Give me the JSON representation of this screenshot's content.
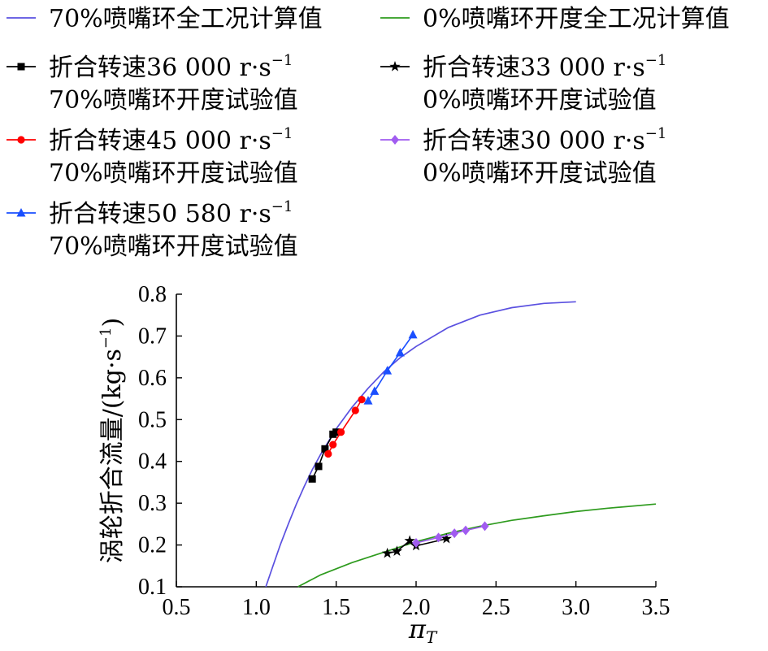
{
  "chart_data": {
    "type": "line",
    "xlabel": "π",
    "xlabel_sub": "T",
    "ylabel": "涡轮折合流量/(kg·s",
    "ylabel_sup": "−1",
    "ylabel_end": ")",
    "xlim": [
      0.5,
      3.5
    ],
    "ylim": [
      0.1,
      0.8
    ],
    "xticks": [
      0.5,
      1.0,
      1.5,
      2.0,
      2.5,
      3.0,
      3.5
    ],
    "xtick_labels": [
      "0.5",
      "1.0",
      "1.5",
      "2.0",
      "2.5",
      "3.0",
      "3.5"
    ],
    "yticks": [
      0.1,
      0.2,
      0.3,
      0.4,
      0.5,
      0.6,
      0.7,
      0.8
    ],
    "ytick_labels": [
      "0.1",
      "0.2",
      "0.3",
      "0.4",
      "0.5",
      "0.6",
      "0.7",
      "0.8"
    ],
    "grid": false,
    "legend_position": "top",
    "series": [
      {
        "name": "70%喷嘴环全工况计算值",
        "legend_lines": [
          "70%喷嘴环全工况计算值"
        ],
        "color": "#5a50e0",
        "marker": "none",
        "x": [
          1.06,
          1.1,
          1.15,
          1.2,
          1.25,
          1.3,
          1.35,
          1.4,
          1.5,
          1.6,
          1.7,
          1.8,
          1.9,
          2.0,
          2.2,
          2.4,
          2.6,
          2.8,
          3.0
        ],
        "y": [
          0.1,
          0.145,
          0.2,
          0.25,
          0.297,
          0.34,
          0.38,
          0.415,
          0.478,
          0.53,
          0.575,
          0.615,
          0.648,
          0.675,
          0.72,
          0.75,
          0.768,
          0.778,
          0.782
        ]
      },
      {
        "name": "0%喷嘴环开度全工况计算值",
        "legend_lines": [
          "0%喷嘴环开度全工况计算值"
        ],
        "color": "#2e9b1e",
        "marker": "none",
        "x": [
          1.26,
          1.4,
          1.6,
          1.8,
          2.0,
          2.2,
          2.4,
          2.6,
          2.8,
          3.0,
          3.2,
          3.5
        ],
        "y": [
          0.1,
          0.128,
          0.158,
          0.183,
          0.208,
          0.228,
          0.245,
          0.259,
          0.27,
          0.28,
          0.288,
          0.298
        ]
      },
      {
        "name": "折合转速36 000 r·s−1 70%喷嘴环开度试验值",
        "legend_lines": [
          "折合转速36 000 r·s",
          "70%喷嘴环开度试验值"
        ],
        "legend_sup": "−1",
        "color": "#000000",
        "marker": "square",
        "x": [
          1.35,
          1.39,
          1.43,
          1.48,
          1.5
        ],
        "y": [
          0.358,
          0.388,
          0.43,
          0.465,
          0.47
        ]
      },
      {
        "name": "折合转速33 000 r·s−1 0%喷嘴环开度试验值",
        "legend_lines": [
          "折合转速33 000 r·s",
          "0%喷嘴环开度试验值"
        ],
        "legend_sup": "−1",
        "color": "#000000",
        "marker": "star",
        "x": [
          1.82,
          1.88,
          1.96,
          2.0,
          2.19
        ],
        "y": [
          0.18,
          0.185,
          0.21,
          0.198,
          0.215
        ]
      },
      {
        "name": "折合转速45 000 r·s−1 70%喷嘴环开度试验值",
        "legend_lines": [
          "折合转速45 000 r·s",
          "70%喷嘴环开度试验值"
        ],
        "legend_sup": "−1",
        "color": "#ff0000",
        "marker": "circle",
        "x": [
          1.45,
          1.48,
          1.53,
          1.62,
          1.66
        ],
        "y": [
          0.418,
          0.44,
          0.47,
          0.522,
          0.548
        ]
      },
      {
        "name": "折合转速30 000 r·s−1 0%喷嘴环开度试验值",
        "legend_lines": [
          "折合转速30 000 r·s",
          "0%喷嘴环开度试验值"
        ],
        "legend_sup": "−1",
        "color": "#a15cf0",
        "marker": "diamond",
        "x": [
          2.0,
          2.14,
          2.24,
          2.31,
          2.43
        ],
        "y": [
          0.205,
          0.218,
          0.228,
          0.235,
          0.245
        ]
      },
      {
        "name": "折合转速50 580 r·s−1 70%喷嘴环开度试验值",
        "legend_lines": [
          "折合转速50 580 r·s",
          "70%喷嘴环开度试验值"
        ],
        "legend_sup": "−1",
        "color": "#1a4fff",
        "marker": "triangle",
        "x": [
          1.7,
          1.74,
          1.82,
          1.9,
          1.98
        ],
        "y": [
          0.545,
          0.568,
          0.617,
          0.66,
          0.703
        ]
      }
    ]
  }
}
